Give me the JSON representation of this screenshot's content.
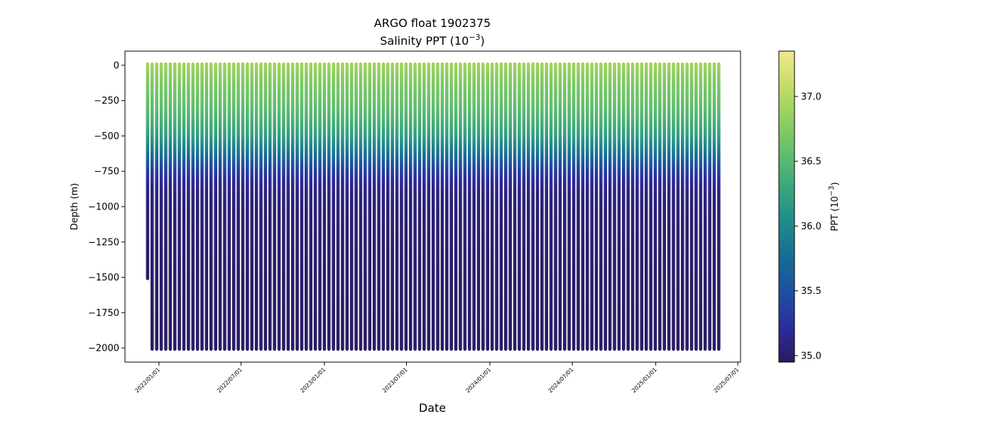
{
  "chart_data": {
    "type": "scatter",
    "title": "ARGO float 1902375",
    "subtitle": "Salinity PPT (10",
    "subtitle_exp": "−3",
    "subtitle_close": ")",
    "xlabel": "Date",
    "ylabel": "Depth (m)",
    "x_ticks": [
      "2022/01/01",
      "2022/07/01",
      "2023/01/01",
      "2023/07/01",
      "2024/01/01",
      "2024/07/01",
      "2025/01/01",
      "2025/07/01"
    ],
    "xlim": [
      "2021-10-18",
      "2025-07-07"
    ],
    "y_ticks": [
      "0",
      "−250",
      "−500",
      "−750",
      "−1000",
      "−1250",
      "−1500",
      "−1750",
      "−2000"
    ],
    "y_tick_values": [
      0,
      -250,
      -500,
      -750,
      -1000,
      -1250,
      -1500,
      -1750,
      -2000
    ],
    "ylim": [
      -2100,
      100
    ],
    "profiles": {
      "first_date": "2021-12-07",
      "last_date": "2025-05-24",
      "interval_days": 10,
      "max_depth": -2000,
      "first_profile_max_depth": -1500
    },
    "profile_columns": [
      {
        "name": "salinity",
        "depth_points": [
          0,
          -100,
          -200,
          -300,
          -400,
          -500,
          -600,
          -700,
          -800,
          -900,
          -1000,
          -1500,
          -2000
        ],
        "values_ppt": [
          36.9,
          36.75,
          36.65,
          36.55,
          36.4,
          36.2,
          35.9,
          35.5,
          35.2,
          35.1,
          35.05,
          35.0,
          34.98
        ]
      }
    ],
    "colorbar": {
      "label": "PPT (10",
      "label_exp": "−3",
      "label_close": ")",
      "range": [
        34.95,
        37.35
      ],
      "ticks": [
        "35.0",
        "35.5",
        "36.0",
        "36.5",
        "37.0"
      ],
      "tick_values": [
        35.0,
        35.5,
        36.0,
        36.5,
        37.0
      ],
      "colormap": [
        "#2b1a5e",
        "#2c2c9e",
        "#1f4fa0",
        "#166b96",
        "#1e8a8c",
        "#38a57e",
        "#5fbd6e",
        "#8fcf5f",
        "#c5dc67",
        "#f0e98e"
      ]
    },
    "grid": false
  }
}
